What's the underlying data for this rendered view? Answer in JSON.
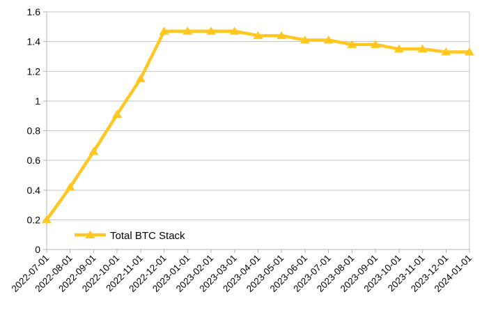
{
  "chart_data": {
    "type": "line",
    "categories": [
      "2022-07-01",
      "2022-08-01",
      "2022-09-01",
      "2022-10-01",
      "2022-11-01",
      "2022-12-01",
      "2023-01-01",
      "2023-02-01",
      "2023-03-01",
      "2023-04-01",
      "2023-05-01",
      "2023-06-01",
      "2023-07-01",
      "2023-08-01",
      "2023-09-01",
      "2023-10-01",
      "2023-11-01",
      "2023-12-01",
      "2024-01-01"
    ],
    "series": [
      {
        "name": "Total BTC Stack",
        "marker": "triangle",
        "color": "#FFC720",
        "values": [
          0.2,
          0.42,
          0.66,
          0.91,
          1.15,
          1.47,
          1.47,
          1.47,
          1.47,
          1.44,
          1.44,
          1.41,
          1.41,
          1.38,
          1.38,
          1.35,
          1.35,
          1.33,
          1.33
        ]
      }
    ],
    "ylim": [
      0,
      1.6
    ],
    "yticks": [
      "0",
      "0.2",
      "0.4",
      "0.6",
      "0.8",
      "1",
      "1.2",
      "1.4",
      "1.6"
    ],
    "grid": "horizontal",
    "legend_position": "inside-bottom-left",
    "colors": {
      "background": "#FFFFFF",
      "grid": "#C6C6C6",
      "axis": "#B3B3B3",
      "text": "#000000"
    }
  }
}
